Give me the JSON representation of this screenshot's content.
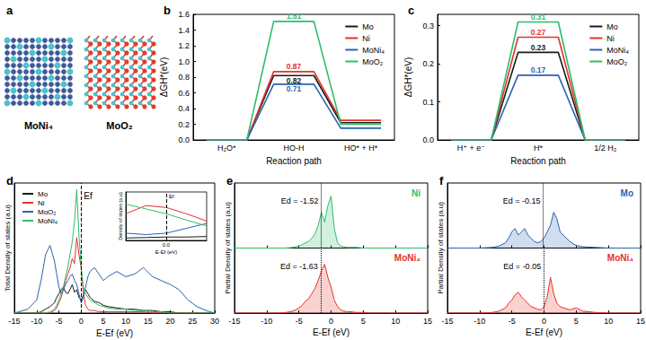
{
  "chart_data": [
    {
      "type": "structure",
      "title": "a",
      "labels": [
        "MoNi₄",
        "MoO₂"
      ]
    },
    {
      "type": "line",
      "title": "b",
      "xlabel": "Reaction path",
      "ylabel": "ΔGH*(eV)",
      "categories": [
        "H₂O*",
        "HO-H",
        "HO* + H*"
      ],
      "ylim": [
        0,
        1.6
      ],
      "yticks": [
        {
          "value": 0,
          "label": "0.0"
        },
        0.2,
        0.4,
        0.6,
        0.8,
        {
          "value": 1,
          "label": "1.0"
        },
        1.2,
        1.4,
        1.6
      ],
      "legend": "upper right",
      "series": [
        {
          "name": "Mo",
          "color": "#1a1a1a",
          "values": [
            0,
            0.82,
            0.22
          ],
          "value_labels": [
            null,
            "0.82",
            null
          ]
        },
        {
          "name": "Ni",
          "color": "#e4322b",
          "values": [
            0,
            0.87,
            0.25
          ],
          "value_labels": [
            null,
            "0.87",
            null
          ]
        },
        {
          "name": "MoNi₄",
          "color": "#2a63b0",
          "values": [
            0,
            0.71,
            0.15
          ],
          "value_labels": [
            null,
            "0.71",
            null
          ]
        },
        {
          "name": "MoO₂",
          "color": "#2ebd6b",
          "values": [
            0,
            1.51,
            0.2
          ],
          "value_labels": [
            null,
            "1.51",
            null
          ]
        }
      ]
    },
    {
      "type": "line",
      "title": "c",
      "xlabel": "Reaction path",
      "ylabel": "ΔGH*(eV)",
      "categories": [
        "H⁺ + e⁻",
        "H*",
        "1/2 H₂"
      ],
      "ylim": [
        0,
        0.33
      ],
      "yticks": [
        {
          "value": 0,
          "label": "0.0"
        },
        0.1,
        0.2,
        0.3
      ],
      "legend": "upper right",
      "series": [
        {
          "name": "Mo",
          "color": "#1a1a1a",
          "values": [
            0,
            0.23,
            0
          ],
          "value_labels": [
            null,
            "0.23",
            null
          ]
        },
        {
          "name": "Ni",
          "color": "#e4322b",
          "values": [
            0,
            0.27,
            0
          ],
          "value_labels": [
            null,
            "0.27",
            null
          ]
        },
        {
          "name": "MoNi₄",
          "color": "#2a63b0",
          "values": [
            0,
            0.17,
            0
          ],
          "value_labels": [
            null,
            "0.17",
            null
          ]
        },
        {
          "name": "MoO₂",
          "color": "#2ebd6b",
          "values": [
            0,
            0.31,
            0
          ],
          "value_labels": [
            null,
            "0.31",
            null
          ]
        }
      ]
    },
    {
      "type": "line",
      "title": "d",
      "xlabel": "E-Ef (eV)",
      "ylabel": "Total Density of states (a.u)",
      "x": [
        -15,
        -12,
        -10,
        -9,
        -8,
        -7,
        -6,
        -5.5,
        -5,
        -4.5,
        -4,
        -3.5,
        -3,
        -2.5,
        -2,
        -1.5,
        -1,
        -0.5,
        0,
        0.5,
        1,
        1.5,
        2,
        3,
        4,
        5,
        6,
        8,
        10,
        12,
        14,
        16,
        18,
        20,
        22,
        24,
        26,
        28,
        30
      ],
      "xlim": [
        -15,
        30
      ],
      "xticks": [
        -15,
        -10,
        -5,
        0,
        5,
        10,
        15,
        20,
        25,
        30
      ],
      "ylim": [
        0,
        10
      ],
      "yticks": [],
      "tick_labels": "x",
      "legend": "upper left",
      "annotations": [
        {
          "text": "Ef",
          "x": 0
        }
      ],
      "series": [
        {
          "name": "Mo",
          "color": "#1a1a1a",
          "values": [
            0,
            0,
            0,
            0.1,
            0.3,
            0.5,
            0.8,
            1.2,
            1.5,
            1.8,
            2.0,
            1.6,
            1.5,
            1.8,
            2.2,
            1.6,
            1.8,
            1.2,
            1.0,
            1.4,
            1.8,
            1.5,
            1.2,
            0.9,
            0.8,
            0.6,
            0.5,
            0.4,
            0.3,
            0.3,
            0.2,
            0.2,
            0.1,
            0.1,
            0,
            0,
            0,
            0,
            0
          ]
        },
        {
          "name": "Ni",
          "color": "#e4322b",
          "values": [
            0,
            0,
            0,
            0,
            0,
            0,
            0.2,
            0.4,
            0.8,
            1.2,
            1.8,
            2.5,
            3.0,
            3.5,
            4.2,
            3.8,
            5.8,
            4.5,
            3.5,
            1.5,
            0.6,
            0.3,
            0.2,
            0.2,
            0.1,
            0.1,
            0.1,
            0.1,
            0.1,
            0.1,
            0.1,
            0,
            0,
            0,
            0,
            0,
            0,
            0,
            0
          ]
        },
        {
          "name": "MoO₂",
          "color": "#2a63b0",
          "values": [
            0,
            0.3,
            1.0,
            2.5,
            4.5,
            5.2,
            4.0,
            3.0,
            2.0,
            1.5,
            1.8,
            2.2,
            2.5,
            2.8,
            3.0,
            2.5,
            2.2,
            1.5,
            0.8,
            1.2,
            2.0,
            2.8,
            3.2,
            3.5,
            3.0,
            2.5,
            2.8,
            3.2,
            2.8,
            3.0,
            3.5,
            2.8,
            2.5,
            2.2,
            1.8,
            1.0,
            0.5,
            0.2,
            0
          ]
        },
        {
          "name": "MoNi₄",
          "color": "#2ebd6b",
          "values": [
            0,
            0,
            0,
            0,
            0,
            0.1,
            0.3,
            0.6,
            1.0,
            1.5,
            2.0,
            2.8,
            3.5,
            4.5,
            5.5,
            7.0,
            9.5,
            6.0,
            3.5,
            2.0,
            1.5,
            1.2,
            1.0,
            0.8,
            0.6,
            0.5,
            0.4,
            0.3,
            0.3,
            0.2,
            0.2,
            0.1,
            0.1,
            0,
            0,
            0,
            0,
            0,
            0
          ]
        }
      ],
      "inset": {
        "xlabel": "E-Ef (eV)",
        "ylabel": "Density of states (a.u)",
        "x": [
          -0.4,
          -0.2,
          0,
          0.2,
          0.4
        ],
        "xlim": [
          -0.4,
          0.4
        ],
        "xticks": [
          {
            "value": 0,
            "label": "0.0"
          }
        ],
        "ylim": [
          0,
          10
        ],
        "yticks": [],
        "annotations": [
          {
            "text": "Ef",
            "x": 0
          }
        ],
        "series": [
          {
            "name": "Mo",
            "color": "#1a1a1a",
            "values": [
              0.5,
              0.6,
              0.7,
              0.7,
              0.8
            ]
          },
          {
            "name": "Ni",
            "color": "#e4322b",
            "values": [
              5.5,
              7.2,
              6.8,
              5.5,
              4.0
            ]
          },
          {
            "name": "MoO₂",
            "color": "#2a63b0",
            "values": [
              1.5,
              1.2,
              1.5,
              2.5,
              3.5
            ]
          },
          {
            "name": "MoNi₄",
            "color": "#2ebd6b",
            "values": [
              7.5,
              6.5,
              5.5,
              4.2,
              3.0
            ]
          }
        ]
      }
    },
    {
      "type": "area",
      "title": "e",
      "xlabel": "E-Ef (eV)",
      "ylabel": "Partial Density of states (a.u)",
      "x": [
        -15,
        -10,
        -8,
        -7,
        -6,
        -5.5,
        -5,
        -4.5,
        -4,
        -3.5,
        -3,
        -2.5,
        -2,
        -1.5,
        -1,
        -0.5,
        0,
        0.5,
        1,
        1.5,
        2,
        2.5,
        3,
        4,
        5,
        6,
        8,
        10,
        15
      ],
      "xlim": [
        -15,
        15
      ],
      "xticks": [
        -15,
        -10,
        -5,
        0,
        5,
        10,
        15
      ],
      "ylim": [
        0,
        10
      ],
      "yticks": [],
      "tick_labels": "x",
      "series": [
        {
          "name": "Ni",
          "color": "#2ebd6b",
          "values": [
            0,
            0,
            0,
            0,
            0.1,
            0.2,
            0.3,
            0.5,
            0.8,
            1.0,
            1.5,
            2.2,
            3.5,
            5.5,
            4.0,
            6.5,
            8.0,
            3.0,
            0.8,
            0.3,
            0.2,
            0.1,
            0.1,
            0.1,
            0,
            0,
            0,
            0,
            0
          ],
          "annotation": {
            "text": "Ed = -1.52",
            "x": -1.52
          }
        },
        {
          "name": "MoNi₄",
          "color": "#e4322b",
          "values": [
            0,
            0,
            0,
            0.1,
            0.3,
            0.5,
            0.8,
            1.2,
            1.8,
            2.2,
            3.0,
            3.8,
            5.0,
            6.5,
            7.5,
            5.5,
            4.0,
            2.0,
            1.0,
            0.5,
            0.3,
            0.2,
            0.2,
            0.1,
            0.1,
            0,
            0,
            0,
            0
          ],
          "annotation": {
            "text": "Ed = -1.63",
            "x": -1.63
          }
        }
      ]
    },
    {
      "type": "area",
      "title": "f",
      "xlabel": "E-Ef (eV)",
      "ylabel": "Partial Density of states (a.u)",
      "x": [
        -15,
        -10,
        -8,
        -7,
        -6,
        -5.5,
        -5,
        -4.5,
        -4,
        -3.5,
        -3,
        -2.5,
        -2,
        -1.5,
        -1,
        -0.5,
        0,
        0.5,
        1,
        1.5,
        2,
        2.5,
        3,
        4,
        5,
        6,
        8,
        10,
        15
      ],
      "xlim": [
        -15,
        15
      ],
      "xticks": [
        -15,
        -10,
        -5,
        0,
        5,
        10,
        15
      ],
      "ylim": [
        0,
        10
      ],
      "yticks": [],
      "tick_labels": "x",
      "series": [
        {
          "name": "Mo",
          "color": "#2a63b0",
          "values": [
            0,
            0,
            0.1,
            0.3,
            0.8,
            1.5,
            2.5,
            3.0,
            2.0,
            2.5,
            3.0,
            2.0,
            1.5,
            1.0,
            0.8,
            1.0,
            1.5,
            2.5,
            3.5,
            5.5,
            4.5,
            2.5,
            2.0,
            1.0,
            0.4,
            0.2,
            0.1,
            0,
            0
          ],
          "annotation": {
            "text": "Ed = -0.15",
            "x": -0.15
          }
        },
        {
          "name": "MoNi₄",
          "color": "#e4322b",
          "values": [
            0,
            0,
            0.1,
            0.3,
            0.8,
            1.5,
            2.0,
            2.8,
            3.2,
            2.5,
            2.0,
            1.5,
            1.0,
            0.8,
            0.6,
            0.5,
            1.0,
            2.5,
            5.5,
            3.0,
            1.5,
            1.0,
            0.8,
            0.5,
            0.8,
            0.3,
            0.1,
            0,
            0
          ],
          "annotation": {
            "text": "Ed = -0.05",
            "x": -0.05
          }
        }
      ]
    }
  ]
}
